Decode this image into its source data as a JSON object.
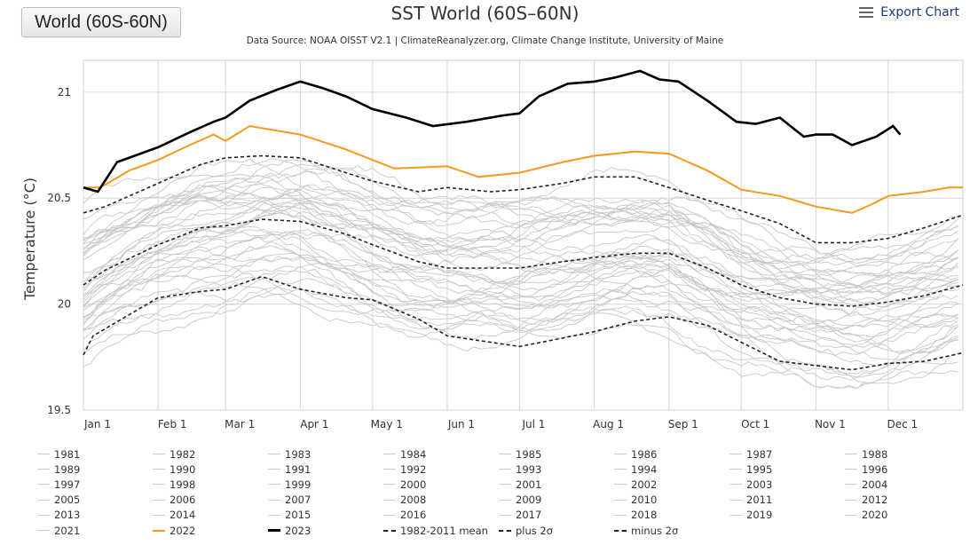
{
  "region_button": {
    "label": "World (60S-60N)"
  },
  "export": {
    "label": "Export Chart",
    "icon": "menu-icon"
  },
  "chart_data": {
    "type": "line",
    "title": "SST World (60S–60N)",
    "subtitle": "Data Source: NOAA OISST V2.1 | ClimateReanalyzer.org, Climate Change Institute, University of Maine",
    "xlabel": "",
    "ylabel": "Temperature (°C)",
    "ylim": [
      19.5,
      21.15
    ],
    "yticks": [
      19.5,
      20,
      20.5,
      21
    ],
    "xlim": [
      1,
      366
    ],
    "xticks": [
      {
        "label": "Jan 1",
        "day": 1
      },
      {
        "label": "Feb 1",
        "day": 32
      },
      {
        "label": "Mar 1",
        "day": 60
      },
      {
        "label": "Apr 1",
        "day": 91
      },
      {
        "label": "May 1",
        "day": 121
      },
      {
        "label": "Jun 1",
        "day": 152
      },
      {
        "label": "Jul 1",
        "day": 182
      },
      {
        "label": "Aug 1",
        "day": 213
      },
      {
        "label": "Sep 1",
        "day": 244
      },
      {
        "label": "Oct 1",
        "day": 274
      },
      {
        "label": "Nov 1",
        "day": 305
      },
      {
        "label": "Dec 1",
        "day": 335
      }
    ],
    "grid": true,
    "legend_position": "bottom",
    "series": [
      {
        "name": "1982-2011 mean",
        "style": "dashed",
        "color": "#222222",
        "x": [
          1,
          10,
          32,
          50,
          60,
          75,
          91,
          110,
          121,
          140,
          152,
          170,
          182,
          200,
          213,
          230,
          244,
          260,
          274,
          290,
          305,
          320,
          335,
          350,
          366
        ],
        "y": [
          20.09,
          20.16,
          20.28,
          20.36,
          20.37,
          20.4,
          20.39,
          20.33,
          20.28,
          20.2,
          20.17,
          20.17,
          20.17,
          20.2,
          20.22,
          20.24,
          20.24,
          20.17,
          20.09,
          20.03,
          20.0,
          19.99,
          20.01,
          20.04,
          20.09
        ]
      },
      {
        "name": "plus 2σ",
        "style": "dashed",
        "color": "#222222",
        "x": [
          1,
          10,
          32,
          50,
          60,
          75,
          91,
          110,
          121,
          140,
          152,
          170,
          182,
          200,
          213,
          230,
          244,
          260,
          274,
          290,
          305,
          320,
          335,
          350,
          366
        ],
        "y": [
          20.43,
          20.46,
          20.57,
          20.66,
          20.69,
          20.7,
          20.69,
          20.62,
          20.58,
          20.53,
          20.55,
          20.53,
          20.54,
          20.57,
          20.6,
          20.6,
          20.55,
          20.49,
          20.44,
          20.38,
          20.29,
          20.29,
          20.31,
          20.36,
          20.42
        ]
      },
      {
        "name": "minus 2σ",
        "style": "dashed",
        "color": "#222222",
        "x": [
          1,
          5,
          32,
          50,
          60,
          75,
          91,
          110,
          121,
          140,
          152,
          170,
          182,
          200,
          213,
          230,
          244,
          260,
          274,
          290,
          305,
          320,
          335,
          350,
          366
        ],
        "y": [
          19.76,
          19.85,
          20.03,
          20.06,
          20.07,
          20.13,
          20.07,
          20.03,
          20.02,
          19.93,
          19.85,
          19.82,
          19.8,
          19.84,
          19.87,
          19.92,
          19.94,
          19.9,
          19.82,
          19.73,
          19.71,
          19.69,
          19.72,
          19.73,
          19.77
        ]
      },
      {
        "name": "2022",
        "style": "solid",
        "color": "#f39a1e",
        "x": [
          1,
          8,
          20,
          32,
          45,
          55,
          60,
          70,
          91,
          110,
          121,
          130,
          152,
          165,
          182,
          200,
          213,
          230,
          244,
          260,
          274,
          290,
          305,
          320,
          328,
          335,
          350,
          360,
          366
        ],
        "y": [
          20.55,
          20.55,
          20.63,
          20.68,
          20.75,
          20.8,
          20.77,
          20.84,
          20.8,
          20.73,
          20.68,
          20.64,
          20.65,
          20.6,
          20.62,
          20.67,
          20.7,
          20.72,
          20.71,
          20.63,
          20.54,
          20.51,
          20.46,
          20.43,
          20.47,
          20.51,
          20.53,
          20.55,
          20.55
        ]
      },
      {
        "name": "2023",
        "style": "solid",
        "color": "#000000",
        "x": [
          1,
          7,
          15,
          32,
          45,
          55,
          60,
          70,
          81,
          91,
          100,
          110,
          121,
          135,
          146,
          160,
          175,
          182,
          190,
          202,
          213,
          222,
          232,
          240,
          248,
          260,
          272,
          280,
          290,
          300,
          305,
          312,
          320,
          330,
          337,
          340
        ],
        "y": [
          20.55,
          20.53,
          20.67,
          20.74,
          20.81,
          20.86,
          20.88,
          20.96,
          21.01,
          21.05,
          21.02,
          20.98,
          20.92,
          20.88,
          20.84,
          20.86,
          20.89,
          20.9,
          20.98,
          21.04,
          21.05,
          21.07,
          21.1,
          21.06,
          21.05,
          20.96,
          20.86,
          20.85,
          20.88,
          20.79,
          20.8,
          20.8,
          20.75,
          20.79,
          20.84,
          20.8
        ]
      }
    ]
  },
  "legend": {
    "items": [
      {
        "label": "1981",
        "color": "#cccccc",
        "style": "solid"
      },
      {
        "label": "1982",
        "color": "#cccccc",
        "style": "solid"
      },
      {
        "label": "1983",
        "color": "#cccccc",
        "style": "solid"
      },
      {
        "label": "1984",
        "color": "#cccccc",
        "style": "solid"
      },
      {
        "label": "1985",
        "color": "#cccccc",
        "style": "solid"
      },
      {
        "label": "1986",
        "color": "#cccccc",
        "style": "solid"
      },
      {
        "label": "1987",
        "color": "#cccccc",
        "style": "solid"
      },
      {
        "label": "1988",
        "color": "#cccccc",
        "style": "solid"
      },
      {
        "label": "1989",
        "color": "#cccccc",
        "style": "solid"
      },
      {
        "label": "1990",
        "color": "#cccccc",
        "style": "solid"
      },
      {
        "label": "1991",
        "color": "#cccccc",
        "style": "solid"
      },
      {
        "label": "1992",
        "color": "#cccccc",
        "style": "solid"
      },
      {
        "label": "1993",
        "color": "#cccccc",
        "style": "solid"
      },
      {
        "label": "1994",
        "color": "#cccccc",
        "style": "solid"
      },
      {
        "label": "1995",
        "color": "#cccccc",
        "style": "solid"
      },
      {
        "label": "1996",
        "color": "#cccccc",
        "style": "solid"
      },
      {
        "label": "1997",
        "color": "#cccccc",
        "style": "solid"
      },
      {
        "label": "1998",
        "color": "#cccccc",
        "style": "solid"
      },
      {
        "label": "1999",
        "color": "#cccccc",
        "style": "solid"
      },
      {
        "label": "2000",
        "color": "#cccccc",
        "style": "solid"
      },
      {
        "label": "2001",
        "color": "#cccccc",
        "style": "solid"
      },
      {
        "label": "2002",
        "color": "#cccccc",
        "style": "solid"
      },
      {
        "label": "2003",
        "color": "#cccccc",
        "style": "solid"
      },
      {
        "label": "2004",
        "color": "#cccccc",
        "style": "solid"
      },
      {
        "label": "2005",
        "color": "#cccccc",
        "style": "solid"
      },
      {
        "label": "2006",
        "color": "#cccccc",
        "style": "solid"
      },
      {
        "label": "2007",
        "color": "#cccccc",
        "style": "solid"
      },
      {
        "label": "2008",
        "color": "#cccccc",
        "style": "solid"
      },
      {
        "label": "2009",
        "color": "#cccccc",
        "style": "solid"
      },
      {
        "label": "2010",
        "color": "#cccccc",
        "style": "solid"
      },
      {
        "label": "2011",
        "color": "#cccccc",
        "style": "solid"
      },
      {
        "label": "2012",
        "color": "#cccccc",
        "style": "solid"
      },
      {
        "label": "2013",
        "color": "#cccccc",
        "style": "solid"
      },
      {
        "label": "2014",
        "color": "#cccccc",
        "style": "solid"
      },
      {
        "label": "2015",
        "color": "#cccccc",
        "style": "solid"
      },
      {
        "label": "2016",
        "color": "#cccccc",
        "style": "solid"
      },
      {
        "label": "2017",
        "color": "#cccccc",
        "style": "solid"
      },
      {
        "label": "2018",
        "color": "#cccccc",
        "style": "solid"
      },
      {
        "label": "2019",
        "color": "#cccccc",
        "style": "solid"
      },
      {
        "label": "2020",
        "color": "#cccccc",
        "style": "solid"
      },
      {
        "label": "2021",
        "color": "#cccccc",
        "style": "solid"
      },
      {
        "label": "2022",
        "color": "#f39a1e",
        "style": "solid"
      },
      {
        "label": "2023",
        "color": "#000000",
        "style": "solid-thick"
      },
      {
        "label": "1982-2011 mean",
        "color": "#222222",
        "style": "dashed"
      },
      {
        "label": "plus 2σ",
        "color": "#222222",
        "style": "dashed"
      },
      {
        "label": "minus 2σ",
        "color": "#222222",
        "style": "dashed"
      }
    ]
  },
  "colors": {
    "grid": "#d8d8d8",
    "background_lines": "#c8c8c8",
    "accent_2022": "#f39a1e",
    "line_2023": "#000000"
  }
}
